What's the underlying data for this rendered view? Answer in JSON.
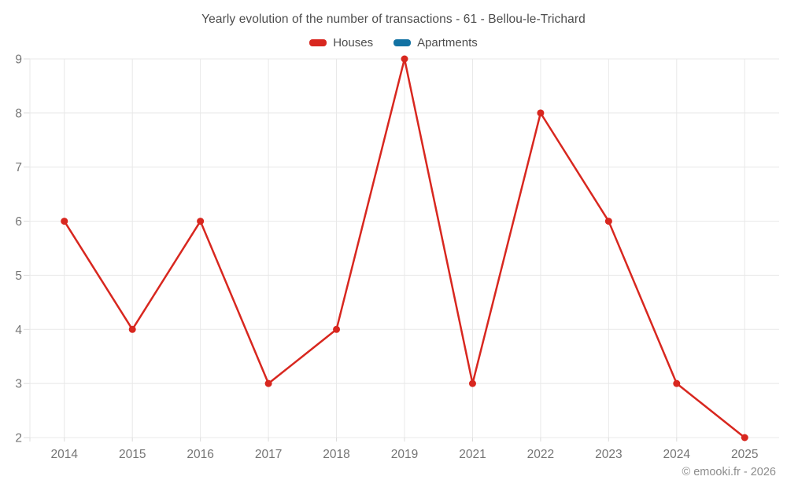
{
  "title": "Yearly evolution of the number of transactions - 61 - Bellou-le-Trichard",
  "copyright": "© emooki.fr - 2026",
  "colors": {
    "houses": "#d8271f",
    "apartments": "#1272a3",
    "gridline": "#e8e8e8",
    "tick": "#dcdcdc",
    "axis_text": "#757575",
    "title_text": "#4d4d4d",
    "copyright_text": "#8c8c8c"
  },
  "chart_data": {
    "type": "line",
    "title": "Yearly evolution of the number of transactions - 61 - Bellou-le-Trichard",
    "categories": [
      "2014",
      "2015",
      "2016",
      "2017",
      "2018",
      "2019",
      "2021",
      "2022",
      "2023",
      "2024",
      "2025"
    ],
    "series": [
      {
        "name": "Houses",
        "color": "#d8271f",
        "values": [
          6,
          4,
          6,
          3,
          4,
          9,
          3,
          8,
          6,
          3,
          2
        ]
      },
      {
        "name": "Apartments",
        "color": "#1272a3",
        "values": []
      }
    ],
    "xlabel": "",
    "ylabel": "",
    "ylim": [
      2,
      9
    ],
    "y_ticks": [
      2,
      3,
      4,
      5,
      6,
      7,
      8,
      9
    ],
    "grid": true,
    "legend_position": "top"
  }
}
